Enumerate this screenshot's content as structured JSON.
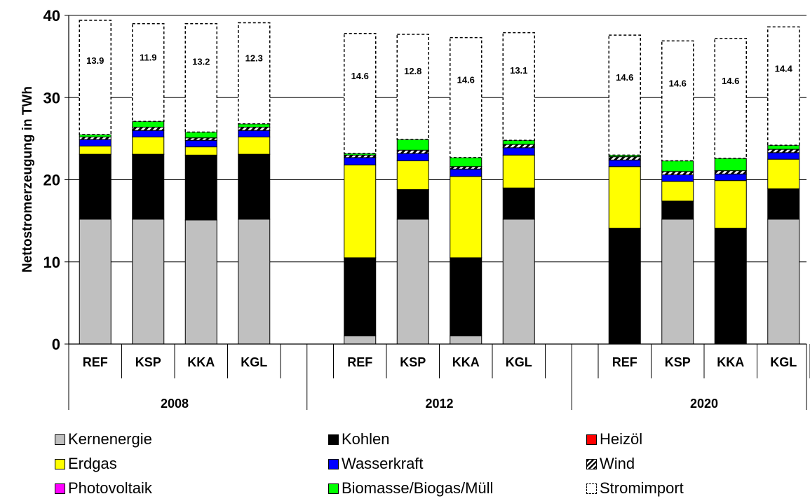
{
  "chart_data": {
    "type": "bar",
    "stacked": true,
    "ylabel": "Nettostromerzeugung in TWh",
    "ylim": [
      0,
      40
    ],
    "yticks": [
      0,
      10,
      20,
      30,
      40
    ],
    "grid": true,
    "legend_position": "bottom",
    "groups": [
      {
        "label": "2008",
        "categories": [
          "REF",
          "KSP",
          "KKA",
          "KGL"
        ]
      },
      {
        "label": "2012",
        "categories": [
          "REF",
          "KSP",
          "KKA",
          "KGL"
        ]
      },
      {
        "label": "2020",
        "categories": [
          "REF",
          "KSP",
          "KKA",
          "KGL"
        ]
      }
    ],
    "series": [
      {
        "name": "Kernenergie",
        "color": "#c0c0c0",
        "pattern": "solid",
        "values": [
          15.2,
          15.2,
          15.1,
          15.2,
          1.0,
          15.2,
          1.0,
          15.2,
          0.0,
          15.2,
          0.0,
          15.2
        ]
      },
      {
        "name": "Kohlen",
        "color": "#000000",
        "pattern": "solid",
        "values": [
          7.9,
          7.9,
          7.9,
          7.9,
          9.5,
          3.6,
          9.5,
          3.8,
          14.1,
          2.2,
          14.1,
          3.7
        ]
      },
      {
        "name": "Heizöl",
        "color": "#ff0000",
        "pattern": "solid",
        "values": [
          0,
          0,
          0,
          0,
          0,
          0,
          0,
          0,
          0,
          0,
          0,
          0
        ]
      },
      {
        "name": "Erdgas",
        "color": "#ffff00",
        "pattern": "solid",
        "values": [
          1.0,
          2.1,
          1.0,
          2.1,
          11.3,
          3.5,
          9.9,
          4.0,
          7.5,
          2.4,
          5.8,
          3.6
        ]
      },
      {
        "name": "Wasserkraft",
        "color": "#0000ff",
        "pattern": "solid",
        "values": [
          0.8,
          0.8,
          0.8,
          0.8,
          0.9,
          0.9,
          0.9,
          0.9,
          0.8,
          0.8,
          0.8,
          0.8
        ]
      },
      {
        "name": "Wind",
        "color": "#000000",
        "pattern": "hatch",
        "values": [
          0.3,
          0.4,
          0.3,
          0.4,
          0.3,
          0.4,
          0.3,
          0.4,
          0.4,
          0.4,
          0.4,
          0.4
        ]
      },
      {
        "name": "Photovoltaik",
        "color": "#ff00ff",
        "pattern": "solid",
        "values": [
          0,
          0,
          0,
          0,
          0,
          0,
          0,
          0,
          0,
          0,
          0,
          0
        ]
      },
      {
        "name": "Biomasse/Biogas/Müll",
        "color": "#00ff00",
        "pattern": "solid",
        "values": [
          0.3,
          0.7,
          0.7,
          0.4,
          0.2,
          1.3,
          1.1,
          0.5,
          0.2,
          1.3,
          1.5,
          0.5
        ]
      },
      {
        "name": "Stromimport",
        "color": "#ffffff",
        "pattern": "dashed",
        "values": [
          13.9,
          11.9,
          13.2,
          12.3,
          14.6,
          12.8,
          14.6,
          13.1,
          14.6,
          14.6,
          14.6,
          14.4
        ],
        "labels": [
          "13.9",
          "11.9",
          "13.2",
          "12.3",
          "14.6",
          "12.8",
          "14.6",
          "13.1",
          "14.6",
          "14.6",
          "14.6",
          "14.4"
        ]
      }
    ]
  }
}
